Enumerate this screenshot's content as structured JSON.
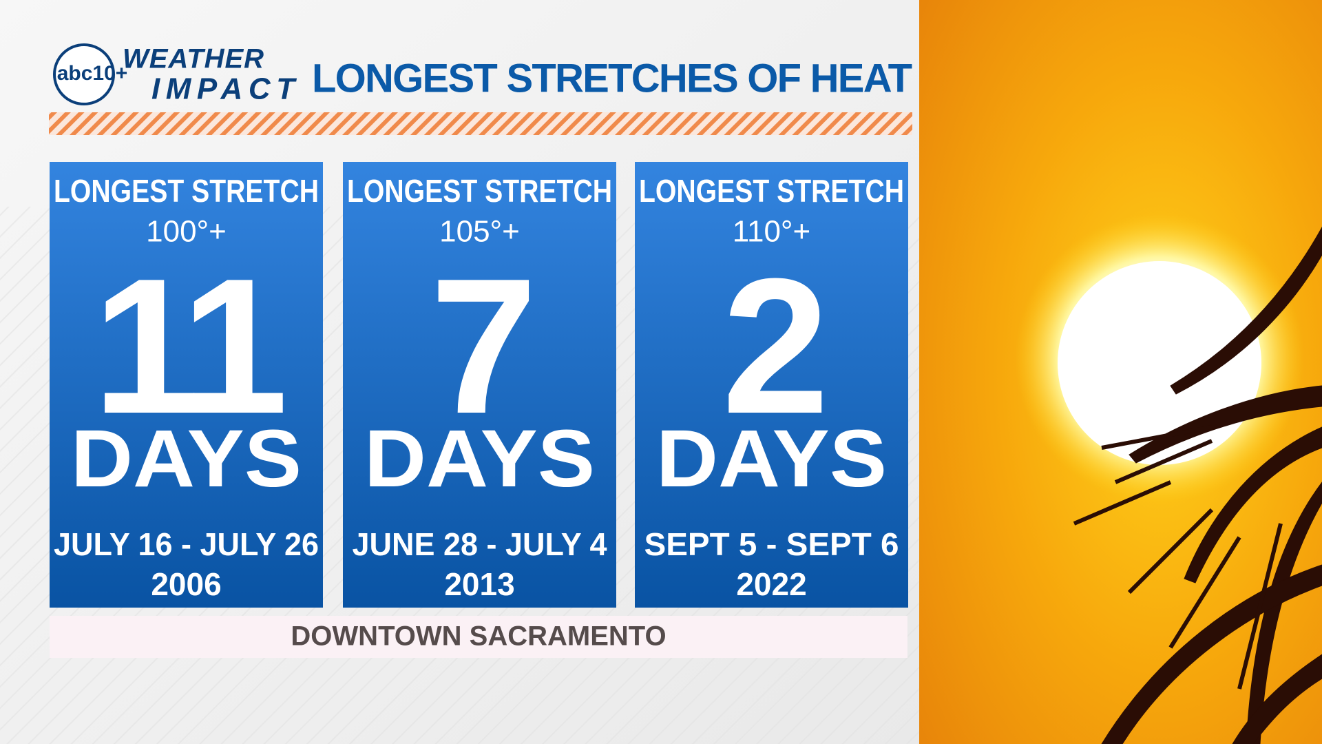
{
  "logo": {
    "network": "abc10+",
    "line1": "WEATHER",
    "line2": "IMPACT"
  },
  "title": "LONGEST STRETCHES OF HEAT",
  "cards": [
    {
      "heading": "LONGEST STRETCH",
      "threshold": "100°+",
      "number": 11,
      "unit": "DAYS",
      "dates": "JULY 16 - JULY 26",
      "year": 2006
    },
    {
      "heading": "LONGEST STRETCH",
      "threshold": "105°+",
      "number": 7,
      "unit": "DAYS",
      "dates": "JUNE 28 - JULY 4",
      "year": 2013
    },
    {
      "heading": "LONGEST STRETCH",
      "threshold": "110°+",
      "number": 2,
      "unit": "DAYS",
      "dates": "SEPT 5 - SEPT 6",
      "year": 2022
    }
  ],
  "footer": "DOWNTOWN SACRAMENTO"
}
